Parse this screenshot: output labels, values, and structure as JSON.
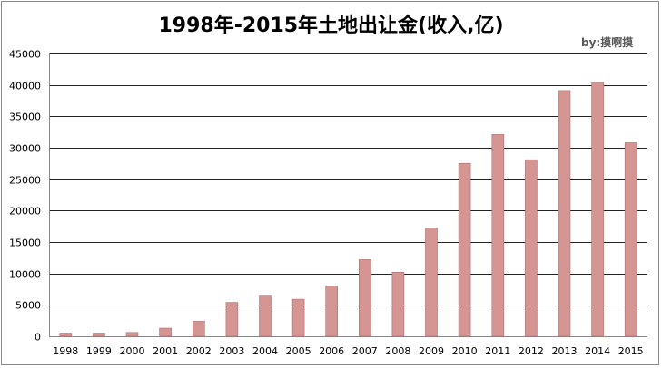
{
  "chart_data": {
    "type": "bar",
    "title": "1998年-2015年土地出让金(收入,亿)",
    "subtitle": "by:摸啊摸",
    "xlabel": "",
    "ylabel": "",
    "categories": [
      "1998",
      "1999",
      "2000",
      "2001",
      "2002",
      "2003",
      "2004",
      "2005",
      "2006",
      "2007",
      "2008",
      "2009",
      "2010",
      "2011",
      "2012",
      "2013",
      "2014",
      "2015"
    ],
    "values": [
      500,
      500,
      600,
      1300,
      2400,
      5400,
      6400,
      5900,
      8000,
      12200,
      10200,
      17200,
      27500,
      32100,
      28100,
      39100,
      40400,
      30800
    ],
    "ylim": [
      0,
      45000
    ],
    "yticks": [
      "0",
      "5000",
      "10000",
      "15000",
      "20000",
      "25000",
      "30000",
      "35000",
      "40000",
      "45000"
    ],
    "grid": true,
    "legend": "none",
    "colors": {
      "bar_fill": "#d59593",
      "bar_stroke": "#a86f6d",
      "grid": "#222222",
      "axis": "#888888"
    }
  }
}
